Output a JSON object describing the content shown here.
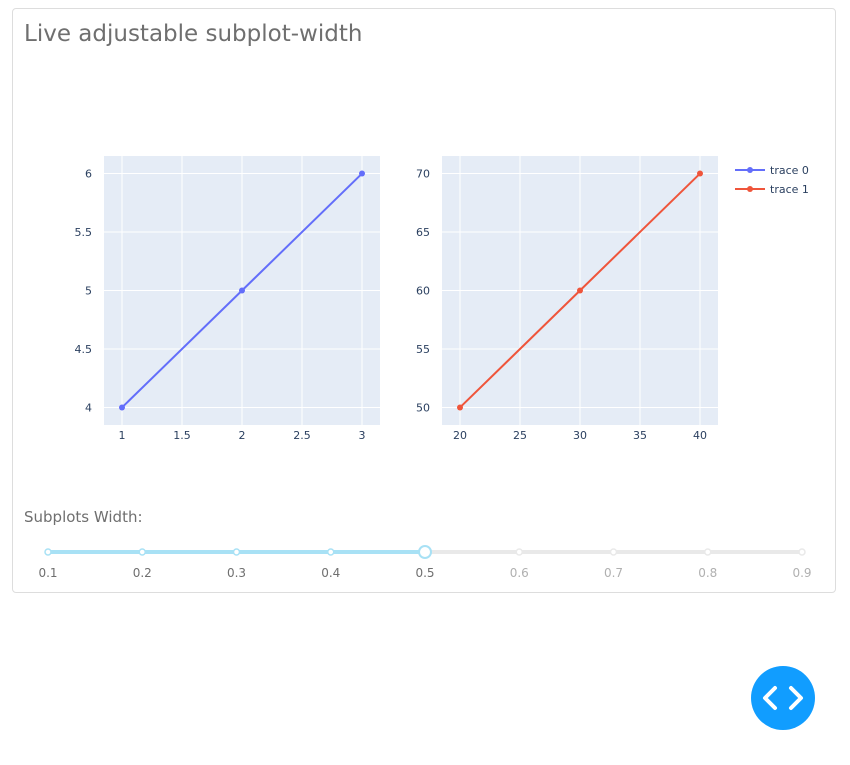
{
  "page": {
    "title": "Live adjustable subplot-width"
  },
  "colors": {
    "plot_bg": "#e5ecf6",
    "grid": "#ffffff",
    "axis_text": "#2a3f5f",
    "trace0": "#636efa",
    "trace1": "#ef553b",
    "slider_active": "#a8e1f5",
    "slider_inactive": "#e9e9e9",
    "fab_bg": "#119dff"
  },
  "chart_data": [
    {
      "type": "line",
      "subplot": 1,
      "x": [
        1,
        2,
        3
      ],
      "series": [
        {
          "name": "trace 0",
          "values": [
            4,
            5,
            6
          ]
        }
      ],
      "xticks": [
        "1",
        "1.5",
        "2",
        "2.5",
        "3"
      ],
      "yticks": [
        "4",
        "4.5",
        "5",
        "5.5",
        "6"
      ],
      "xlim": [
        0.85,
        3.15
      ],
      "ylim": [
        3.85,
        6.15
      ],
      "grid": true
    },
    {
      "type": "line",
      "subplot": 2,
      "x": [
        20,
        30,
        40
      ],
      "series": [
        {
          "name": "trace 1",
          "values": [
            50,
            60,
            70
          ]
        }
      ],
      "xticks": [
        "20",
        "25",
        "30",
        "35",
        "40"
      ],
      "yticks": [
        "50",
        "55",
        "60",
        "65",
        "70"
      ],
      "xlim": [
        18.5,
        41.5
      ],
      "ylim": [
        48.5,
        71.5
      ],
      "grid": true
    }
  ],
  "legend": {
    "placement": "top-right",
    "items": [
      "trace 0",
      "trace 1"
    ]
  },
  "slider": {
    "label": "Subplots Width:",
    "value": 0.5,
    "marks": [
      "0.1",
      "0.2",
      "0.3",
      "0.4",
      "0.5",
      "0.6",
      "0.7",
      "0.8",
      "0.9"
    ]
  },
  "fab": {
    "icon": "code-icon"
  }
}
